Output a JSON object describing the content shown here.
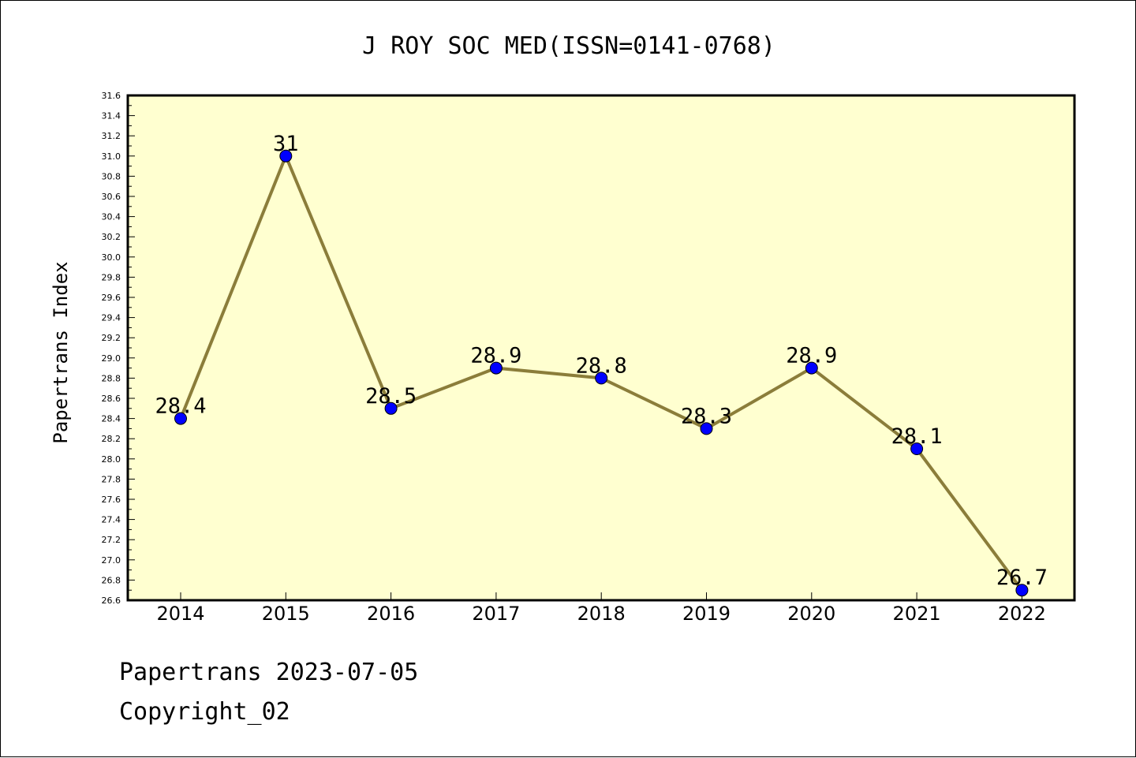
{
  "chart_data": {
    "type": "line",
    "title": "J ROY SOC MED(ISSN=0141-0768)",
    "xlabel": "",
    "ylabel": "Papertrans Index",
    "categories": [
      "2014",
      "2015",
      "2016",
      "2017",
      "2018",
      "2019",
      "2020",
      "2021",
      "2022"
    ],
    "series": [
      {
        "values": [
          28.4,
          31,
          28.5,
          28.9,
          28.8,
          28.3,
          28.9,
          28.1,
          26.7
        ],
        "labels": [
          "28.4",
          "31",
          "28.5",
          "28.9",
          "28.8",
          "28.3",
          "28.9",
          "28.1",
          "26.7"
        ]
      }
    ],
    "ylim": [
      26.6,
      31.6
    ],
    "yticks": [
      "26.6",
      "26.8",
      "27.0",
      "27.2",
      "27.4",
      "27.6",
      "27.8",
      "28.0",
      "28.2",
      "28.4",
      "28.6",
      "28.8",
      "29.0",
      "29.2",
      "29.4",
      "29.6",
      "29.8",
      "30.0",
      "30.2",
      "30.4",
      "30.6",
      "30.8",
      "31.0",
      "31.2",
      "31.4",
      "31.6"
    ],
    "grid": false,
    "colors": {
      "plot_background": "#ffffd0",
      "line": "#8b7d3a",
      "marker": "#0000ff"
    }
  },
  "footer": {
    "line1": "Papertrans 2023-07-05",
    "line2": "Copyright_02"
  }
}
